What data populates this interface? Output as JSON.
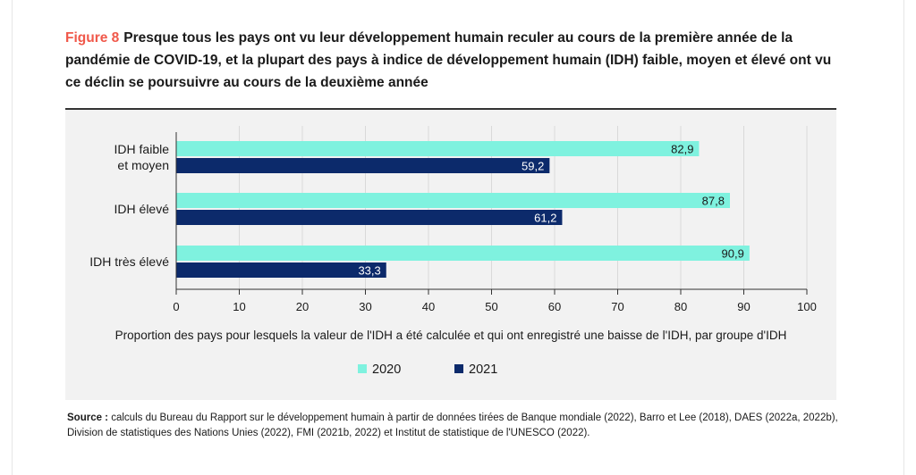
{
  "header": {
    "figure_label": "Figure 8",
    "title": "Presque tous les pays ont vu leur développement humain reculer au cours de la première année de la pandémie de COVID-19, et la plupart des pays à indice de développement humain (IDH) faible, moyen et élevé ont vu ce déclin se poursuivre au cours de la deuxième année"
  },
  "footer": {
    "source_label": "Source :",
    "source_text": "calculs du Bureau du Rapport sur le développement humain à partir de données tirées de Banque mondiale (2022), Barro et Lee (2018), DAES (2022a, 2022b), Division de statistiques des Nations Unies (2022), FMI (2021b, 2022) et Institut de statistique de l'UNESCO (2022)."
  },
  "colors": {
    "accent": "#f0584a",
    "series_2020": "#7ff2df",
    "series_2021": "#0c2a6b",
    "panel_bg": "#f2f2f2"
  },
  "chart_data": {
    "type": "bar",
    "orientation": "horizontal",
    "categories": [
      [
        "IDH faible",
        "et moyen"
      ],
      [
        "IDH élevé"
      ],
      [
        "IDH très élevé"
      ]
    ],
    "series": [
      {
        "name": "2020",
        "values": [
          82.9,
          87.8,
          90.9
        ],
        "labels": [
          "82,9",
          "87,8",
          "90,9"
        ],
        "color": "#7ff2df"
      },
      {
        "name": "2021",
        "values": [
          59.2,
          61.2,
          33.3
        ],
        "labels": [
          "59,2",
          "61,2",
          "33,3"
        ],
        "color": "#0c2a6b"
      }
    ],
    "xlim": [
      0,
      100
    ],
    "xticks": [
      0,
      10,
      20,
      30,
      40,
      50,
      60,
      70,
      80,
      90,
      100
    ],
    "xlabel": "Proportion des pays pour lesquels la valeur de l'IDH a été calculée et qui ont enregistré une baisse de l'IDH, par groupe d'IDH",
    "legend_position": "bottom-center",
    "grid": true
  }
}
